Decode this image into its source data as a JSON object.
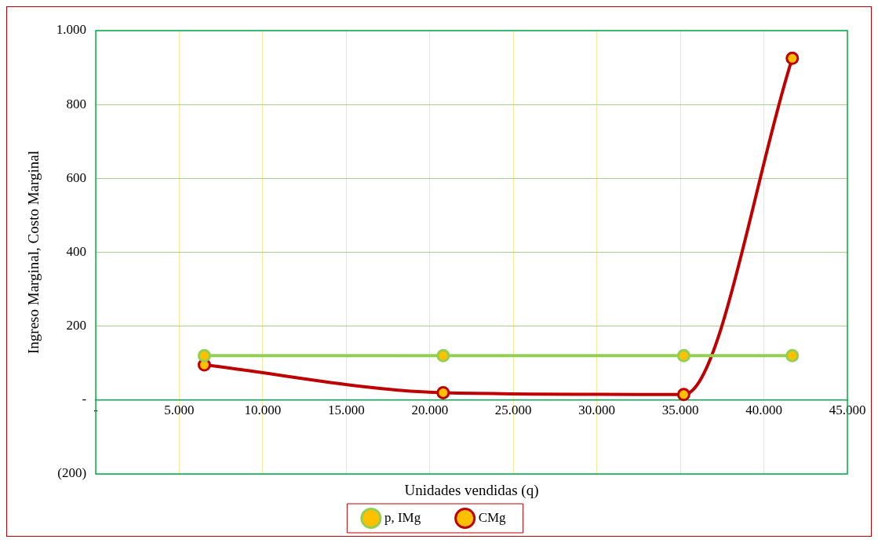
{
  "chart_data": {
    "type": "line",
    "xlabel": "Unidades vendidas (q)",
    "ylabel": "Ingreso Marginal, Costo Marginal",
    "x": [
      6500,
      20800,
      35200,
      41700
    ],
    "series": [
      {
        "name": "p, IMg",
        "color": "#92d050",
        "values": [
          120,
          120,
          120,
          120
        ]
      },
      {
        "name": "CMg",
        "color": "#c00000",
        "values": [
          95,
          20,
          15,
          925
        ]
      }
    ],
    "xlim": [
      0,
      45000
    ],
    "xticks": [
      {
        "value": 0,
        "label": "-"
      },
      {
        "value": 5000,
        "label": "5.000"
      },
      {
        "value": 10000,
        "label": "10.000"
      },
      {
        "value": 15000,
        "label": "15.000"
      },
      {
        "value": 20000,
        "label": "20.000"
      },
      {
        "value": 25000,
        "label": "25.000"
      },
      {
        "value": 30000,
        "label": "30.000"
      },
      {
        "value": 35000,
        "label": "35.000"
      },
      {
        "value": 40000,
        "label": "40.000"
      },
      {
        "value": 45000,
        "label": "45.000"
      }
    ],
    "ylim": [
      -200,
      1000
    ],
    "yticks": [
      {
        "value": -200,
        "label": "(200)"
      },
      {
        "value": 0,
        "label": "-"
      },
      200,
      400,
      600,
      800,
      {
        "value": 1000,
        "label": "1.000"
      }
    ],
    "grid": true,
    "legend": "bottom",
    "marker": "circle",
    "line_style": "solid"
  }
}
